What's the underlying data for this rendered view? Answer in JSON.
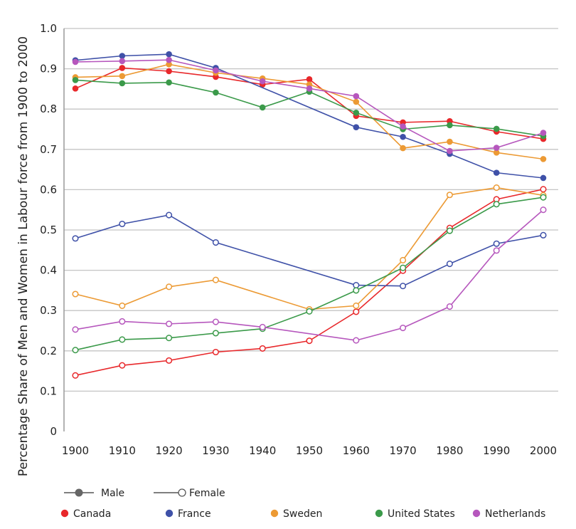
{
  "chart_data": {
    "type": "line",
    "title": "",
    "xlabel": "",
    "ylabel": "Percentage Share of Men and Women in Labour force from 1900 to 2000",
    "x": [
      1900,
      1910,
      1920,
      1930,
      1940,
      1950,
      1960,
      1970,
      1980,
      1990,
      2000
    ],
    "xlim": [
      1900,
      2000
    ],
    "ylim": [
      0,
      1.0
    ],
    "yticks": [
      "0",
      "0.1",
      "0.2",
      "0.3",
      "0.4",
      "0.5",
      "0.6",
      "0.7",
      "0.8",
      "0.9",
      "1.0"
    ],
    "xticks": [
      "1900",
      "1910",
      "1920",
      "1930",
      "1940",
      "1950",
      "1960",
      "1970",
      "1980",
      "1990",
      "2000"
    ],
    "grid": "horizontal",
    "legend_position": "bottom",
    "style_legend": [
      {
        "name": "Male",
        "marker": "filled"
      },
      {
        "name": "Female",
        "marker": "open"
      }
    ],
    "countries": [
      {
        "name": "Canada",
        "color": "#e8282b"
      },
      {
        "name": "France",
        "color": "#3f51a8"
      },
      {
        "name": "Sweden",
        "color": "#ec9a34"
      },
      {
        "name": "United States",
        "color": "#3b9a4a"
      },
      {
        "name": "Netherlands",
        "color": "#b657bd"
      }
    ],
    "series": [
      {
        "country": "Canada",
        "sex": "Male",
        "values": [
          0.851,
          0.902,
          0.894,
          0.88,
          0.861,
          0.874,
          0.783,
          0.767,
          0.77,
          0.744,
          0.726
        ]
      },
      {
        "country": "France",
        "sex": "Male",
        "values": [
          0.921,
          0.932,
          0.936,
          0.902,
          null,
          null,
          0.755,
          0.731,
          0.689,
          0.642,
          0.629
        ]
      },
      {
        "country": "Sweden",
        "sex": "Male",
        "values": [
          0.879,
          0.882,
          0.911,
          0.89,
          0.876,
          0.861,
          0.818,
          0.703,
          0.719,
          0.692,
          0.676
        ]
      },
      {
        "country": "United States",
        "sex": "Male",
        "values": [
          0.872,
          0.864,
          0.866,
          0.841,
          0.804,
          0.843,
          0.791,
          0.75,
          0.76,
          0.751,
          0.733
        ]
      },
      {
        "country": "Netherlands",
        "sex": "Male",
        "values": [
          0.917,
          0.919,
          0.922,
          0.896,
          0.869,
          0.851,
          0.832,
          0.757,
          0.696,
          0.704,
          0.741
        ]
      },
      {
        "country": "Canada",
        "sex": "Female",
        "values": [
          0.139,
          0.164,
          0.176,
          0.197,
          0.206,
          0.225,
          0.297,
          0.399,
          0.505,
          0.576,
          0.601
        ]
      },
      {
        "country": "France",
        "sex": "Female",
        "values": [
          0.479,
          0.515,
          0.537,
          0.469,
          null,
          null,
          0.363,
          0.361,
          0.416,
          0.466,
          0.487
        ]
      },
      {
        "country": "Sweden",
        "sex": "Female",
        "values": [
          0.341,
          0.312,
          0.359,
          0.376,
          null,
          0.303,
          0.312,
          0.425,
          0.587,
          0.605,
          0.586
        ]
      },
      {
        "country": "United States",
        "sex": "Female",
        "values": [
          0.202,
          0.228,
          0.232,
          0.244,
          0.255,
          0.298,
          0.35,
          0.406,
          0.498,
          0.564,
          0.581
        ]
      },
      {
        "country": "Netherlands",
        "sex": "Female",
        "values": [
          0.253,
          0.273,
          0.267,
          0.272,
          0.259,
          null,
          0.226,
          0.257,
          0.31,
          0.449,
          0.55
        ]
      }
    ]
  }
}
